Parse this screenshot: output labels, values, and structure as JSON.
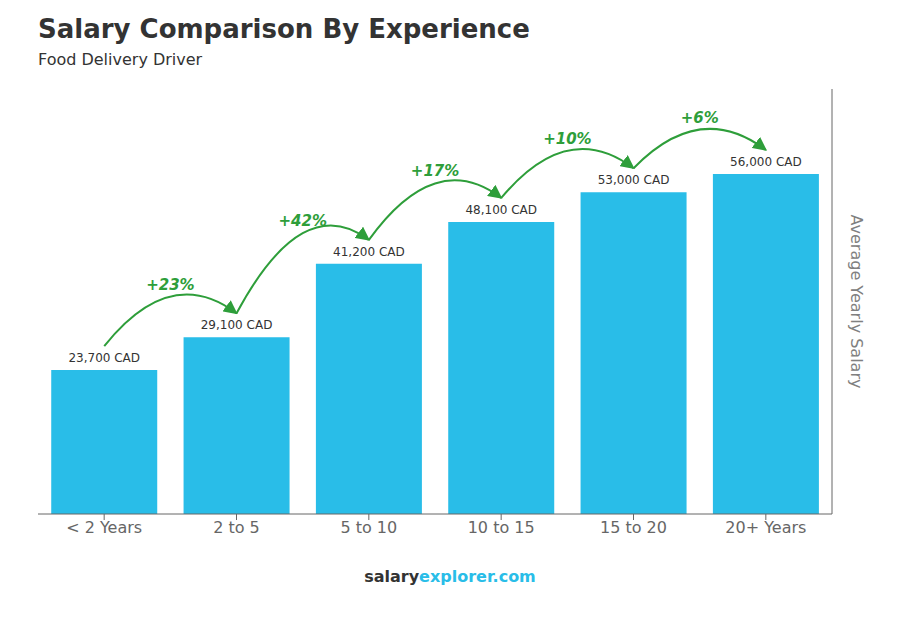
{
  "chart_data": {
    "type": "bar",
    "title": "Salary Comparison By Experience",
    "subtitle": "Food Delivery Driver",
    "categories": [
      "< 2 Years",
      "2 to 5",
      "5 to 10",
      "10 to 15",
      "15 to 20",
      "20+ Years"
    ],
    "values": [
      23700,
      29100,
      41200,
      48100,
      53000,
      56000
    ],
    "value_labels": [
      "23,700 CAD",
      "29,100 CAD",
      "41,200 CAD",
      "48,100 CAD",
      "53,000 CAD",
      "56,000 CAD"
    ],
    "data_labels": true,
    "color": "#29bde8",
    "ylim": [
      0,
      70000
    ],
    "tick_labels": "x",
    "ylabel": "Average Yearly Salary",
    "annotations": [
      {
        "text": "+23%",
        "from": "< 2 Years",
        "to": "2 to 5"
      },
      {
        "text": "+42%",
        "from": "2 to 5",
        "to": "5 to 10"
      },
      {
        "text": "+17%",
        "from": "5 to 10",
        "to": "10 to 15"
      },
      {
        "text": "+10%",
        "from": "10 to 15",
        "to": "15 to 20"
      },
      {
        "text": "+6%",
        "from": "15 to 20",
        "to": "20+ Years"
      }
    ],
    "footer": [
      "salary",
      "explorer.com"
    ]
  }
}
